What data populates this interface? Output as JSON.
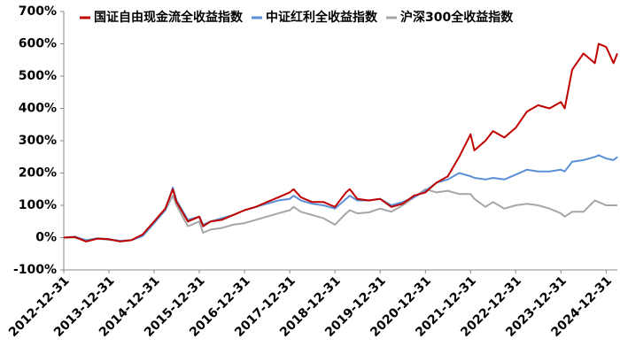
{
  "chart_data": {
    "type": "line",
    "x": [
      "2012-12-31",
      "2013-03-31",
      "2013-06-30",
      "2013-09-30",
      "2013-12-31",
      "2014-03-31",
      "2014-06-30",
      "2014-09-30",
      "2014-12-31",
      "2015-03-31",
      "2015-05-31",
      "2015-06-30",
      "2015-09-30",
      "2015-12-31",
      "2016-01-31",
      "2016-03-31",
      "2016-06-30",
      "2016-09-30",
      "2016-12-31",
      "2017-03-31",
      "2017-06-30",
      "2017-09-30",
      "2017-12-31",
      "2018-01-31",
      "2018-03-31",
      "2018-06-30",
      "2018-09-30",
      "2018-12-31",
      "2019-03-31",
      "2019-04-30",
      "2019-06-30",
      "2019-09-30",
      "2019-12-31",
      "2020-03-31",
      "2020-06-30",
      "2020-09-30",
      "2020-12-31",
      "2021-03-31",
      "2021-06-30",
      "2021-09-30",
      "2021-12-31",
      "2022-01-31",
      "2022-04-30",
      "2022-06-30",
      "2022-09-30",
      "2022-12-31",
      "2023-03-31",
      "2023-06-30",
      "2023-09-30",
      "2023-12-31",
      "2024-01-31",
      "2024-03-31",
      "2024-06-30",
      "2024-09-30",
      "2024-10-31",
      "2024-12-31",
      "2025-02-28",
      "2025-03-31"
    ],
    "series": [
      {
        "name": "国证自由现金流全收益指数",
        "color": "#c00000",
        "values": [
          0,
          2,
          -12,
          -3,
          -5,
          -12,
          -8,
          10,
          50,
          90,
          150,
          110,
          50,
          65,
          35,
          50,
          55,
          70,
          85,
          95,
          110,
          125,
          140,
          150,
          125,
          110,
          110,
          95,
          140,
          150,
          120,
          115,
          120,
          95,
          105,
          130,
          140,
          170,
          190,
          250,
          320,
          270,
          300,
          330,
          310,
          340,
          390,
          410,
          400,
          420,
          400,
          520,
          570,
          540,
          600,
          590,
          540,
          570
        ]
      },
      {
        "name": "中证红利全收益指数",
        "color": "#5b8fd6",
        "values": [
          0,
          3,
          -8,
          -2,
          -5,
          -10,
          -8,
          5,
          45,
          85,
          155,
          115,
          55,
          65,
          40,
          50,
          60,
          70,
          85,
          95,
          105,
          115,
          120,
          130,
          115,
          105,
          100,
          90,
          120,
          130,
          115,
          115,
          120,
          100,
          110,
          125,
          145,
          170,
          180,
          200,
          190,
          185,
          180,
          185,
          180,
          195,
          210,
          205,
          205,
          210,
          205,
          235,
          240,
          250,
          255,
          245,
          240,
          250
        ]
      },
      {
        "name": "沪深300全收益指数",
        "color": "#a6a6a6",
        "values": [
          0,
          0,
          -10,
          -3,
          -7,
          -10,
          -8,
          8,
          50,
          85,
          130,
          100,
          35,
          50,
          15,
          25,
          30,
          40,
          45,
          55,
          65,
          75,
          85,
          95,
          80,
          70,
          60,
          40,
          75,
          85,
          75,
          78,
          90,
          80,
          100,
          125,
          150,
          140,
          145,
          135,
          135,
          120,
          95,
          110,
          90,
          100,
          105,
          100,
          90,
          75,
          65,
          80,
          80,
          115,
          110,
          100,
          100,
          100
        ]
      }
    ],
    "xlim": [
      "2012-12-31",
      "2025-03-31"
    ],
    "xticks": [
      "2012-12-31",
      "2013-12-31",
      "2014-12-31",
      "2015-12-31",
      "2016-12-31",
      "2017-12-31",
      "2018-12-31",
      "2019-12-31",
      "2020-12-31",
      "2021-12-31",
      "2022-12-31",
      "2023-12-31",
      "2024-12-31"
    ],
    "ylim": [
      -100,
      700
    ],
    "yticks": [
      {
        "value": -100,
        "label": "-100%"
      },
      {
        "value": 0,
        "label": "0%"
      },
      {
        "value": 100,
        "label": "100%"
      },
      {
        "value": 200,
        "label": "200%"
      },
      {
        "value": 300,
        "label": "300%"
      },
      {
        "value": 400,
        "label": "400%"
      },
      {
        "value": 500,
        "label": "500%"
      },
      {
        "value": 600,
        "label": "600%"
      },
      {
        "value": 700,
        "label": "700%"
      }
    ],
    "grid": false
  }
}
